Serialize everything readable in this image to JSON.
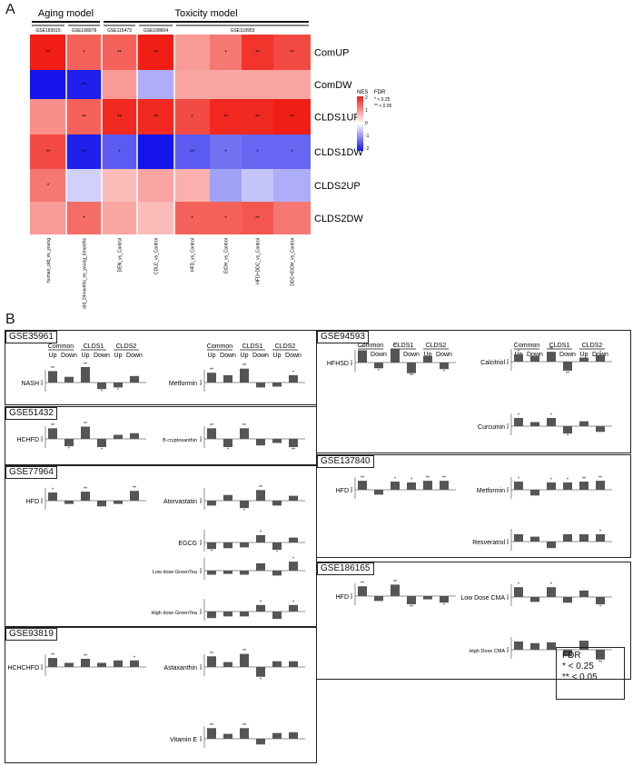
{
  "panel_labels": {
    "a": "A",
    "b": "B"
  },
  "chart_data": [
    {
      "type": "heatmap",
      "title": "",
      "group_labels": [
        "Aging model",
        "Toxicity model"
      ],
      "datasets": [
        "GSE183915",
        "GSE168978",
        "GSE115473",
        "GSE168604",
        "GSE119953"
      ],
      "columns": [
        "human_old_vs_young",
        "Rat_old_24months_vs_young_6months",
        "DEN_vs_Control",
        "CDLE_vs_Control",
        "HFD_vs_Control",
        "EtOH_vs_Control",
        "HFD+DDC_vs_Control",
        "DDC+EtOH_vs_Control"
      ],
      "rows": [
        "ComUP",
        "ComDW",
        "CLDS1UP",
        "CLDS1DW",
        "CLDS2UP",
        "CLDS2DW"
      ],
      "values": [
        [
          2.0,
          1.4,
          1.4,
          2.0,
          0.9,
          1.2,
          1.8,
          1.6
        ],
        [
          -2.0,
          -1.9,
          0.9,
          -0.7,
          0.8,
          0.8,
          0.8,
          0.8
        ],
        [
          1.0,
          1.4,
          1.9,
          1.9,
          1.6,
          1.9,
          1.9,
          2.0
        ],
        [
          1.6,
          -1.9,
          -1.4,
          -2.0,
          -1.4,
          -1.2,
          -1.3,
          -1.3
        ],
        [
          1.2,
          -0.4,
          0.6,
          0.8,
          0.7,
          -0.8,
          -0.5,
          -0.7
        ],
        [
          0.9,
          1.3,
          0.8,
          0.6,
          1.4,
          1.4,
          1.5,
          1.2
        ]
      ],
      "significance": [
        [
          "**",
          "*",
          "**",
          "**",
          "",
          "*",
          "**",
          "**"
        ],
        [
          "",
          "**",
          "",
          "",
          "",
          "",
          "",
          ""
        ],
        [
          "",
          "**",
          "**",
          "**",
          "*",
          "**",
          "**",
          "**"
        ],
        [
          "**",
          "**",
          "*",
          "",
          "**",
          "*",
          "*",
          "*"
        ],
        [
          "*",
          "",
          "",
          "",
          "",
          "",
          "",
          ""
        ],
        [
          "",
          "*",
          "",
          "",
          "*",
          "*",
          "**",
          ""
        ]
      ],
      "colorbar": {
        "label": "NES",
        "ticks": [
          "2",
          "1",
          "0",
          "-1",
          "-2"
        ]
      },
      "legend": {
        "title": "FDR",
        "items": [
          "* < 0.25",
          "** < 0.05"
        ]
      }
    },
    {
      "type": "bar",
      "ylabel": "NES",
      "group_headers": [
        "Common",
        "CLDS1",
        "CLDS2"
      ],
      "bar_labels": [
        "Up",
        "Down",
        "Up",
        "Down",
        "Up",
        "Down"
      ],
      "panels": [
        {
          "dataset": "GSE35961",
          "treatments": [
            {
              "name": "NASH",
              "values": [
                1.4,
                0.7,
                1.9,
                -0.8,
                -0.6,
                0.8
              ],
              "stars": [
                "**",
                "",
                "**",
                "*",
                "*",
                ""
              ]
            },
            {
              "name": "Metformin",
              "values": [
                1.2,
                0.9,
                1.7,
                -0.6,
                -0.5,
                0.9
              ],
              "stars": [
                "**",
                "",
                "**",
                "",
                "",
                "*"
              ]
            }
          ]
        },
        {
          "dataset": "GSE51432",
          "treatments": [
            {
              "name": "HCHFD",
              "values": [
                1.3,
                -0.9,
                1.5,
                -1.0,
                0.5,
                0.7
              ],
              "stars": [
                "**",
                "*",
                "**",
                "*",
                "",
                ""
              ]
            },
            {
              "name": "B cryptoxanthin",
              "values": [
                1.3,
                -1.0,
                1.3,
                -0.8,
                -0.5,
                -1.0
              ],
              "stars": [
                "**",
                "*",
                "**",
                "",
                "",
                "**"
              ]
            }
          ]
        },
        {
          "dataset": "GSE77964",
          "treatments": [
            {
              "name": "HFD",
              "values": [
                1.0,
                -0.4,
                1.1,
                -0.7,
                -0.4,
                1.2
              ],
              "stars": [
                "*",
                "",
                "**",
                "",
                "",
                "**"
              ]
            },
            {
              "name": "Atorvastatin",
              "values": [
                -0.6,
                0.7,
                -0.9,
                1.3,
                -0.6,
                0.6
              ],
              "stars": [
                "",
                "",
                "*",
                "**",
                "",
                ""
              ]
            },
            {
              "name": "EGCG",
              "values": [
                -0.8,
                -0.7,
                -0.6,
                0.9,
                -0.9,
                0.6
              ],
              "stars": [
                "*",
                "",
                "",
                "*",
                "*",
                ""
              ]
            },
            {
              "name": "Low dose GreenTea",
              "values": [
                -0.5,
                -0.4,
                -0.5,
                0.9,
                -0.6,
                1.1
              ],
              "stars": [
                "",
                "",
                "",
                "",
                "",
                "*"
              ]
            },
            {
              "name": "High dose GreenTea",
              "values": [
                -0.8,
                -0.6,
                -0.6,
                0.8,
                -0.9,
                0.8
              ],
              "stars": [
                "",
                "",
                "",
                "*",
                "",
                "*"
              ]
            }
          ]
        },
        {
          "dataset": "GSE93819",
          "treatments": [
            {
              "name": "HCHCHFD",
              "values": [
                1.1,
                0.5,
                1.0,
                0.5,
                0.8,
                0.8
              ],
              "stars": [
                "**",
                "",
                "**",
                "",
                "",
                "*"
              ]
            },
            {
              "name": "Astaxanthin",
              "values": [
                1.3,
                0.6,
                1.6,
                -1.2,
                0.7,
                0.7
              ],
              "stars": [
                "**",
                "",
                "**",
                "*",
                "",
                ""
              ]
            },
            {
              "name": "Vitamin E",
              "values": [
                1.3,
                0.6,
                1.3,
                -0.7,
                0.7,
                0.8
              ],
              "stars": [
                "**",
                "",
                "**",
                "",
                "",
                ""
              ]
            }
          ]
        },
        {
          "dataset": "GSE94593",
          "treatments": [
            {
              "name": "HFHSD",
              "values": [
                1.5,
                -0.7,
                1.7,
                -1.3,
                0.8,
                -0.8
              ],
              "stars": [
                "**",
                "*",
                "**",
                "**",
                "",
                "*"
              ]
            },
            {
              "name": "Calcitriol",
              "values": [
                0.9,
                0.7,
                1.2,
                -1.1,
                0.5,
                0.8
              ],
              "stars": [
                "*",
                "",
                "**",
                "**",
                "",
                "*"
              ]
            },
            {
              "name": "Curcumin",
              "values": [
                1.0,
                0.5,
                1.0,
                -0.9,
                0.6,
                -0.7
              ],
              "stars": [
                "*",
                "",
                "*",
                "*",
                "",
                ""
              ]
            }
          ]
        },
        {
          "dataset": "GSE137840",
          "treatments": [
            {
              "name": "HFD",
              "values": [
                1.1,
                -0.6,
                1.0,
                0.9,
                1.1,
                1.1
              ],
              "stars": [
                "**",
                "",
                "*",
                "*",
                "**",
                "**"
              ]
            },
            {
              "name": "Metformin",
              "values": [
                1.0,
                -0.7,
                0.9,
                0.9,
                1.0,
                1.1
              ],
              "stars": [
                "*",
                "",
                "*",
                "*",
                "**",
                "**"
              ]
            },
            {
              "name": "Resveratrol",
              "values": [
                0.9,
                0.6,
                -0.8,
                0.9,
                0.9,
                0.9
              ],
              "stars": [
                "",
                "",
                "",
                "",
                "",
                "*"
              ]
            }
          ]
        },
        {
          "dataset": "GSE186165",
          "treatments": [
            {
              "name": "HFD",
              "values": [
                1.2,
                -0.6,
                1.4,
                -1.0,
                -0.4,
                -0.8
              ],
              "stars": [
                "**",
                "",
                "**",
                "**",
                "",
                "*"
              ]
            },
            {
              "name": "Low Dose CMA",
              "values": [
                1.2,
                -0.6,
                1.2,
                -0.7,
                0.8,
                -0.9
              ],
              "stars": [
                "*",
                "",
                "*",
                "",
                "",
                "*"
              ]
            },
            {
              "name": "High Dose CMA",
              "values": [
                1.0,
                0.8,
                0.9,
                -0.8,
                1.1,
                -1.2
              ],
              "stars": [
                "",
                "",
                "",
                "",
                "",
                "**"
              ]
            }
          ]
        }
      ],
      "legend": {
        "title": "FDR",
        "items": [
          "* < 0.25",
          "** < 0.05"
        ]
      }
    }
  ]
}
